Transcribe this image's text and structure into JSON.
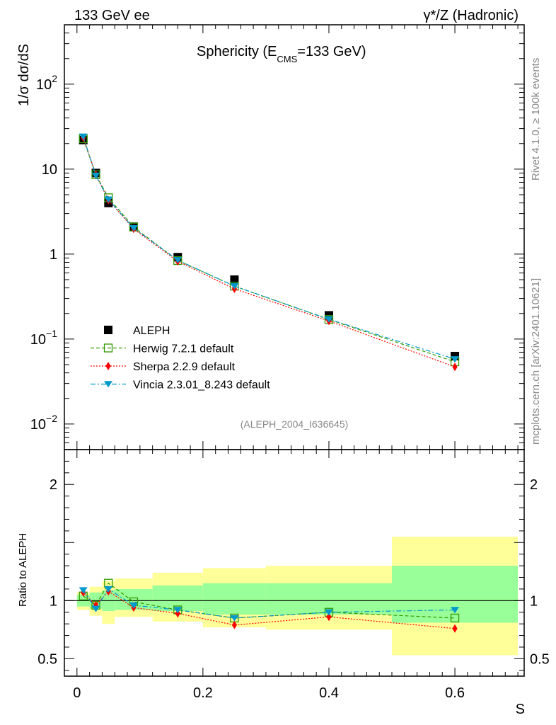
{
  "header": {
    "left": "133 GeV ee",
    "right_sup": "γ*/Z (Hadronic)"
  },
  "side_labels": {
    "rivet": "Rivet 4.1.0, ≥ 100k events",
    "mcplots": "mcplots.cern.ch [arXiv:2401.10621]"
  },
  "chart_data": {
    "type": "line",
    "title": "Sphericity (E",
    "title_sub": "CMS",
    "title_rest": "=133 GeV)",
    "analysis_id": "(ALEPH_2004_I636645)",
    "xlabel": "S",
    "ylabel": "1/σ  dσ/dS",
    "ratio_ylabel": "Ratio to ALEPH",
    "xlim": [
      -0.02,
      0.71
    ],
    "ylim": [
      0.005,
      500
    ],
    "yscale": "log",
    "ratio_ylim": [
      0.35,
      2.3
    ],
    "x_ticks": [
      "0",
      "0.2",
      "0.4",
      "0.6"
    ],
    "x_tick_values": [
      0,
      0.2,
      0.4,
      0.6
    ],
    "y_ticks_main": [
      {
        "value": 0.01,
        "base": "10",
        "exp": "−2"
      },
      {
        "value": 0.1,
        "base": "10",
        "exp": "−1"
      },
      {
        "value": 1,
        "base": "1",
        "exp": ""
      },
      {
        "value": 10,
        "base": "10",
        "exp": ""
      },
      {
        "value": 100,
        "base": "10",
        "exp": "2"
      }
    ],
    "y_ticks_ratio": [
      {
        "value": 0.5,
        "label": "0.5"
      },
      {
        "value": 1,
        "label": "1"
      },
      {
        "value": 2,
        "label": "2"
      }
    ],
    "x": [
      0.01,
      0.03,
      0.05,
      0.09,
      0.16,
      0.25,
      0.4,
      0.6
    ],
    "bin_edges": [
      0,
      0.02,
      0.04,
      0.06,
      0.12,
      0.2,
      0.3,
      0.5,
      0.7
    ],
    "band_yellow": [
      [
        0.92,
        1.07
      ],
      [
        0.87,
        1.12
      ],
      [
        0.8,
        1.17
      ],
      [
        0.86,
        1.19
      ],
      [
        0.82,
        1.24
      ],
      [
        0.77,
        1.28
      ],
      [
        0.75,
        1.3
      ],
      [
        0.53,
        1.55
      ]
    ],
    "band_green": [
      [
        0.95,
        1.05
      ],
      [
        0.93,
        1.07
      ],
      [
        0.91,
        1.09
      ],
      [
        0.92,
        1.1
      ],
      [
        0.91,
        1.13
      ],
      [
        0.88,
        1.15
      ],
      [
        0.88,
        1.15
      ],
      [
        0.81,
        1.3
      ]
    ],
    "series": [
      {
        "name": "ALEPH",
        "color": "#000000",
        "marker": "square",
        "style": "none",
        "values": [
          22.0,
          9.0,
          4.0,
          2.1,
          0.92,
          0.5,
          0.19,
          0.063
        ],
        "ratio": [
          1,
          1,
          1,
          1,
          1,
          1,
          1,
          1
        ]
      },
      {
        "name": "Herwig 7.2.1 default",
        "color": "#339900",
        "marker": "open-square",
        "style": "dashed",
        "values": [
          22.8,
          8.6,
          4.6,
          2.08,
          0.84,
          0.42,
          0.17,
          0.054
        ],
        "ratio": [
          1.04,
          0.96,
          1.15,
          0.99,
          0.92,
          0.85,
          0.9,
          0.85
        ]
      },
      {
        "name": "Sherpa 2.2.9 default",
        "color": "#ff0000",
        "marker": "diamond",
        "style": "dotted",
        "values": [
          23.5,
          8.6,
          4.3,
          1.98,
          0.82,
          0.39,
          0.163,
          0.047
        ],
        "ratio": [
          1.07,
          0.96,
          1.08,
          0.94,
          0.89,
          0.79,
          0.86,
          0.76
        ]
      },
      {
        "name": "Vincia 2.3.01_8.243 default",
        "color": "#0099cc",
        "marker": "triangle-down",
        "style": "dashdot",
        "values": [
          24.2,
          8.4,
          4.4,
          2.02,
          0.85,
          0.42,
          0.171,
          0.058
        ],
        "ratio": [
          1.09,
          0.93,
          1.1,
          0.96,
          0.92,
          0.85,
          0.9,
          0.92
        ]
      }
    ]
  }
}
